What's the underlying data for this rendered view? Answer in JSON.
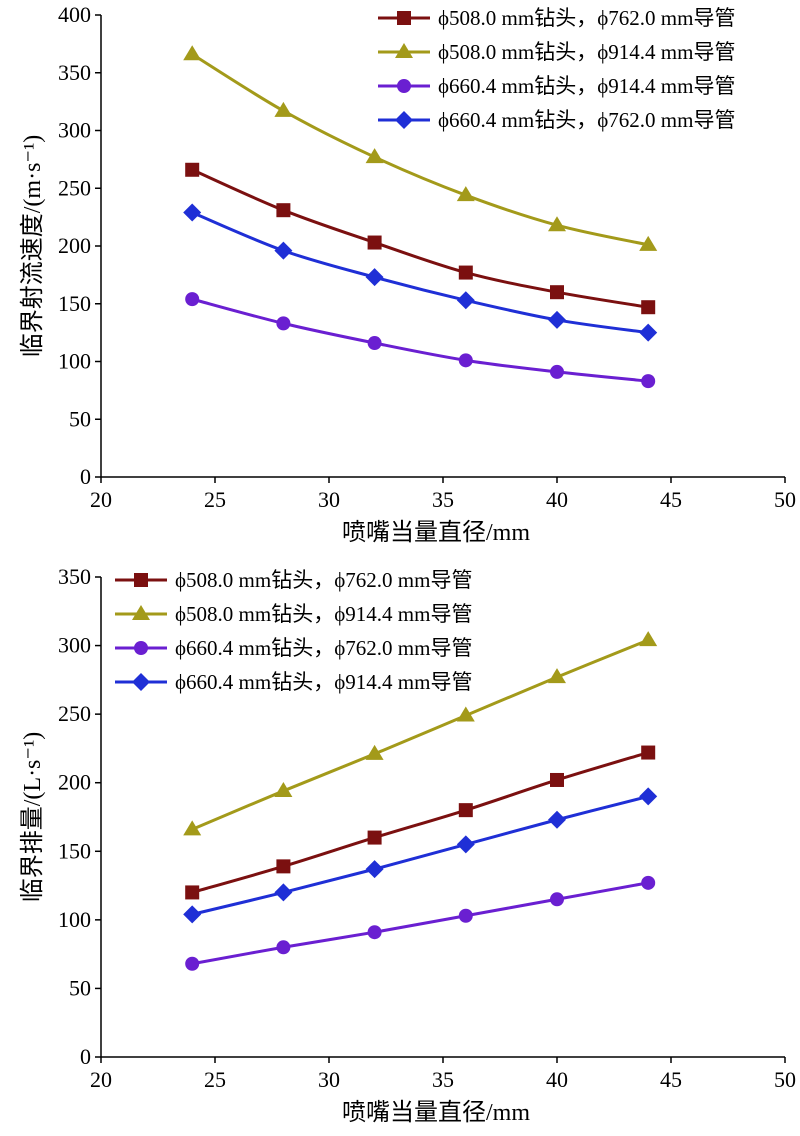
{
  "chart_data": [
    {
      "type": "line",
      "title": "",
      "xlabel": "喷嘴当量直径/mm",
      "ylabel": "临界射流速度/(m·s⁻¹)",
      "xlim": [
        20,
        50
      ],
      "ylim": [
        0,
        400
      ],
      "xticks": [
        "20",
        "25",
        "30",
        "35",
        "40",
        "45",
        "50"
      ],
      "yticks": [
        "0",
        "50",
        "100",
        "150",
        "200",
        "250",
        "300",
        "350",
        "400"
      ],
      "x": [
        24,
        28,
        32,
        36,
        40,
        44
      ],
      "grid": false,
      "legend_position": "top-right",
      "series": [
        {
          "name": "ϕ508.0 mm钻头，ϕ762.0 mm导管",
          "marker": "square",
          "color": "#7b1010",
          "values": [
            266,
            231,
            203,
            177,
            160,
            147
          ]
        },
        {
          "name": "ϕ508.0 mm钻头，ϕ914.4 mm导管",
          "marker": "triangle",
          "color": "#a39a1a",
          "values": [
            366,
            317,
            277,
            244,
            218,
            201
          ]
        },
        {
          "name": "ϕ660.4 mm钻头，ϕ914.4 mm导管",
          "marker": "circle",
          "color": "#6a1fd1",
          "values": [
            154,
            133,
            116,
            101,
            91,
            83
          ]
        },
        {
          "name": "ϕ660.4 mm钻头，ϕ762.0 mm导管",
          "marker": "diamond",
          "color": "#1f2fd6",
          "values": [
            229,
            196,
            173,
            153,
            136,
            125
          ]
        }
      ]
    },
    {
      "type": "line",
      "title": "",
      "xlabel": "喷嘴当量直径/mm",
      "ylabel": "临界排量/(L·s⁻¹)",
      "xlim": [
        20,
        50
      ],
      "ylim": [
        0,
        350
      ],
      "xticks": [
        "20",
        "25",
        "30",
        "35",
        "40",
        "45",
        "50"
      ],
      "yticks": [
        "0",
        "50",
        "100",
        "150",
        "200",
        "250",
        "300",
        "350"
      ],
      "x": [
        24,
        28,
        32,
        36,
        40,
        44
      ],
      "grid": false,
      "legend_position": "top-left",
      "series": [
        {
          "name": "ϕ508.0 mm钻头，ϕ762.0 mm导管",
          "marker": "square",
          "color": "#7b1010",
          "values": [
            120,
            139,
            160,
            180,
            202,
            222
          ]
        },
        {
          "name": "ϕ508.0 mm钻头，ϕ914.4 mm导管",
          "marker": "triangle",
          "color": "#a39a1a",
          "values": [
            166,
            194,
            221,
            249,
            277,
            304
          ]
        },
        {
          "name": "ϕ660.4 mm钻头，ϕ762.0 mm导管",
          "marker": "circle",
          "color": "#6a1fd1",
          "values": [
            68,
            80,
            91,
            103,
            115,
            127
          ]
        },
        {
          "name": "ϕ660.4 mm钻头，ϕ914.4 mm导管",
          "marker": "diamond",
          "color": "#1f2fd6",
          "values": [
            104,
            120,
            137,
            155,
            173,
            190
          ]
        }
      ]
    }
  ]
}
